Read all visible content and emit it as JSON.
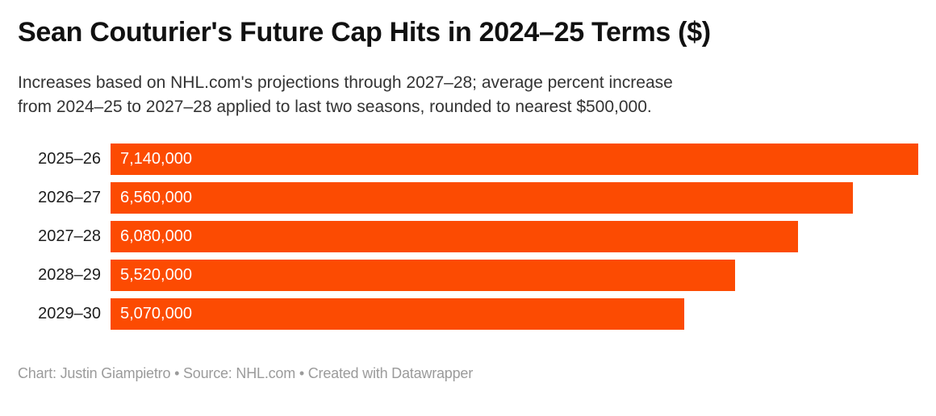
{
  "chart": {
    "title": "Sean Couturier's Future Cap Hits in 2024–25 Terms ($)",
    "subtitle_lines": [
      "Increases based on NHL.com's projections through 2027–28; average percent increase",
      "from 2024–25 to 2027–28 applied to last two seasons, rounded to nearest $500,000."
    ],
    "footer": "Chart: Justin Giampietro • Source: NHL.com • Created with Datawrapper"
  },
  "chart_data": {
    "type": "bar",
    "orientation": "horizontal",
    "title": "Sean Couturier's Future Cap Hits in 2024–25 Terms ($)",
    "subtitle": "Increases based on NHL.com's projections through 2027–28; average percent increase from 2024–25 to 2027–28 applied to last two seasons, rounded to nearest $500,000.",
    "categories": [
      "2025–26",
      "2026–27",
      "2027–28",
      "2028–29",
      "2029–30"
    ],
    "values": [
      7140000,
      6560000,
      6080000,
      5520000,
      5070000
    ],
    "value_labels": [
      "7,140,000",
      "6,560,000",
      "6,080,000",
      "5,520,000",
      "5,070,000"
    ],
    "xlabel": "",
    "ylabel": "",
    "xlim": [
      0,
      7140000
    ],
    "grid": false,
    "legend": false,
    "bar_color": "#fc4b02",
    "label_color": "#ffffff",
    "attribution": "Chart: Justin Giampietro • Source: NHL.com • Created with Datawrapper"
  },
  "colors": {
    "bar": "#fc4b02",
    "title": "#111111",
    "subtitle": "#333333",
    "category": "#1d1d1d",
    "footer": "#9b9b9b",
    "background": "#ffffff"
  }
}
